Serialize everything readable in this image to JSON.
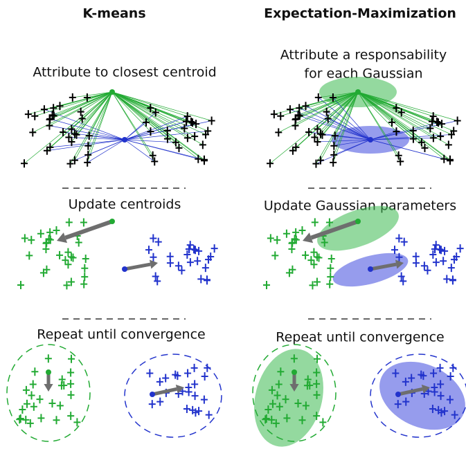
{
  "headers": {
    "left": "K-means",
    "right": "Expectation-Maximization"
  },
  "kmeans": {
    "step1": "Attribute to closest centroid",
    "step2": "Update centroids",
    "step3": "Repeat until convergence"
  },
  "em": {
    "step1": [
      "Attribute a responsability",
      "for each Gaussian"
    ],
    "step2": "Update Gaussian parameters",
    "step3": "Repeat until convergence"
  }
}
